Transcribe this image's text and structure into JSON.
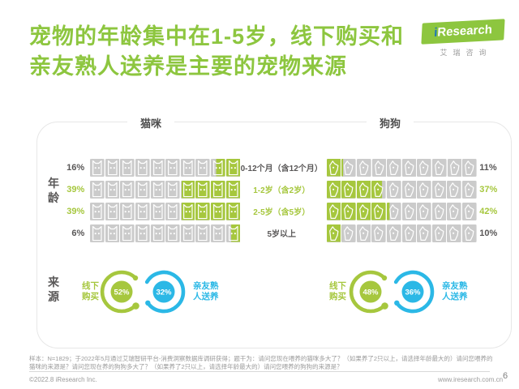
{
  "title": {
    "line1": "宠物的年龄集中在1-5岁，线下购买和",
    "line2": "亲友熟人送养是主要的宠物来源"
  },
  "logo": {
    "brand_i": "i",
    "brand_rest": "Research",
    "subtitle": "艾瑞咨询"
  },
  "panel": {
    "cat_header": "猫咪",
    "dog_header": "狗狗",
    "age_row_label": "年龄",
    "source_row_label": "来源"
  },
  "chart_data": [
    {
      "type": "pictogram_bar",
      "title": "宠物年龄分布",
      "categories": [
        "0-12个月（含12个月）",
        "1-2岁（含2岁）",
        "2-5岁（含5岁）",
        "5岁以上"
      ],
      "highlighted": [
        false,
        true,
        true,
        false
      ],
      "icons_per_row": 10,
      "unit": "%",
      "series": [
        {
          "name": "猫咪",
          "icon": "cat",
          "fill_from": "right",
          "values": [
            16,
            39,
            39,
            6
          ]
        },
        {
          "name": "狗狗",
          "icon": "dog",
          "fill_from": "left",
          "values": [
            11,
            37,
            42,
            10
          ]
        }
      ]
    },
    {
      "type": "donut",
      "title": "宠物来源",
      "unit": "%",
      "series": [
        {
          "name": "猫咪",
          "slices": [
            {
              "label": "线下购买",
              "value": 52
            },
            {
              "label": "亲友熟人送养",
              "value": 32
            }
          ]
        },
        {
          "name": "狗狗",
          "slices": [
            {
              "label": "线下购买",
              "value": 48
            },
            {
              "label": "亲友熟人送养",
              "value": 36
            }
          ]
        }
      ]
    }
  ],
  "sources": {
    "offline_l1": "线下",
    "offline_l2": "购买",
    "friends_l1": "亲友熟",
    "friends_l2": "人送养",
    "cat_offline": "52%",
    "cat_friends": "32%",
    "dog_offline": "48%",
    "dog_friends": "36%"
  },
  "footnote": "样本：N=1829；于2022年5月通过艾瑞智研平台-消费洞察数据库调研获得；题干为：请问您现在喂养的猫咪多大了？（如果养了2只以上，请选择年龄最大的）请问您喂养的猫咪的来源是？请问您现在养的狗狗多大了？（如果养了2只以上，请选择年龄最大的）请问您喂养的狗狗的来源是？",
  "footer": {
    "copyright": "©2022.8 iResearch Inc.",
    "website": "www.iresearch.com.cn",
    "page": "6"
  },
  "colors": {
    "title_green": "#8dc63f",
    "icon_green": "#a6c73e",
    "icon_gray": "#cbcbcb",
    "blue": "#2bb8e6",
    "dark_text": "#595757",
    "muted_text": "#9b9b9b"
  }
}
